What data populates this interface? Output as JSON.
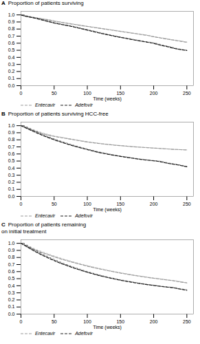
{
  "chart_data": [
    {
      "type": "step",
      "title": "A",
      "xlabel": "Time (weeks)",
      "ylabel": "Proportion of patients surviving",
      "x": [
        0,
        5,
        10,
        15,
        20,
        25,
        30,
        35,
        40,
        45,
        50,
        55,
        60,
        65,
        70,
        75,
        80,
        85,
        90,
        95,
        100,
        105,
        110,
        115,
        120,
        125,
        130,
        135,
        140,
        145,
        150,
        155,
        160,
        165,
        170,
        175,
        180,
        185,
        190,
        195,
        200,
        205,
        210,
        215,
        220,
        225,
        230,
        235,
        240,
        245,
        250
      ],
      "xlim": [
        0,
        260
      ],
      "xticks": [
        0,
        50,
        100,
        150,
        200,
        250
      ],
      "ylim": [
        0.0,
        1.05
      ],
      "yticks": [
        {
          "value": 0.0,
          "label": "0.0"
        },
        0.1,
        0.2,
        0.3,
        0.4,
        0.5,
        0.6,
        0.7,
        0.8,
        0.9,
        {
          "value": 1.0,
          "label": "1.0"
        }
      ],
      "grid": false,
      "legend": "lower left",
      "series": [
        {
          "name": "Entecavir",
          "color": "#999999",
          "line_style": "dashed",
          "values": [
            1.0,
            0.985,
            0.975,
            0.968,
            0.96,
            0.953,
            0.945,
            0.938,
            0.93,
            0.92,
            0.91,
            0.903,
            0.895,
            0.888,
            0.88,
            0.872,
            0.865,
            0.858,
            0.85,
            0.843,
            0.836,
            0.829,
            0.822,
            0.815,
            0.808,
            0.801,
            0.794,
            0.787,
            0.78,
            0.773,
            0.766,
            0.759,
            0.752,
            0.745,
            0.738,
            0.731,
            0.724,
            0.717,
            0.71,
            0.7,
            0.69,
            0.682,
            0.674,
            0.666,
            0.658,
            0.65,
            0.643,
            0.635,
            0.628,
            0.62,
            0.612
          ]
        },
        {
          "name": "Adefovir",
          "color": "#1a1a1a",
          "line_style": "dashed",
          "values": [
            1.0,
            0.985,
            0.975,
            0.965,
            0.955,
            0.944,
            0.932,
            0.92,
            0.908,
            0.896,
            0.884,
            0.875,
            0.866,
            0.857,
            0.848,
            0.839,
            0.828,
            0.817,
            0.806,
            0.795,
            0.784,
            0.773,
            0.762,
            0.751,
            0.74,
            0.73,
            0.72,
            0.71,
            0.7,
            0.691,
            0.682,
            0.673,
            0.664,
            0.655,
            0.646,
            0.638,
            0.63,
            0.622,
            0.614,
            0.606,
            0.598,
            0.585,
            0.572,
            0.562,
            0.552,
            0.54,
            0.528,
            0.518,
            0.51,
            0.503,
            0.496
          ]
        }
      ]
    },
    {
      "type": "step",
      "title": "B",
      "xlabel": "Time (weeks)",
      "ylabel": "Proportion of patients surviving HCC-free",
      "x": [
        0,
        5,
        10,
        15,
        20,
        25,
        30,
        35,
        40,
        45,
        50,
        55,
        60,
        65,
        70,
        75,
        80,
        85,
        90,
        95,
        100,
        105,
        110,
        115,
        120,
        125,
        130,
        135,
        140,
        145,
        150,
        155,
        160,
        165,
        170,
        175,
        180,
        185,
        190,
        195,
        200,
        205,
        210,
        215,
        220,
        225,
        230,
        235,
        240,
        245,
        250
      ],
      "xlim": [
        0,
        260
      ],
      "xticks": [
        0,
        50,
        100,
        150,
        200,
        250
      ],
      "ylim": [
        0.0,
        1.05
      ],
      "yticks": [
        {
          "value": 0.0,
          "label": "0.0"
        },
        0.1,
        0.2,
        0.3,
        0.4,
        0.5,
        0.6,
        0.7,
        0.8,
        0.9,
        {
          "value": 1.0,
          "label": "1.0"
        }
      ],
      "grid": false,
      "legend": "lower left",
      "series": [
        {
          "name": "Entecavir",
          "color": "#999999",
          "line_style": "dashed",
          "values": [
            1.0,
            0.98,
            0.962,
            0.944,
            0.926,
            0.91,
            0.895,
            0.882,
            0.87,
            0.858,
            0.848,
            0.84,
            0.832,
            0.824,
            0.816,
            0.808,
            0.8,
            0.792,
            0.784,
            0.776,
            0.769,
            0.763,
            0.757,
            0.751,
            0.745,
            0.74,
            0.735,
            0.73,
            0.725,
            0.721,
            0.717,
            0.713,
            0.709,
            0.705,
            0.701,
            0.698,
            0.695,
            0.692,
            0.689,
            0.686,
            0.683,
            0.68,
            0.677,
            0.674,
            0.671,
            0.668,
            0.665,
            0.663,
            0.661,
            0.659,
            0.657
          ]
        },
        {
          "name": "Adefovir",
          "color": "#1a1a1a",
          "line_style": "dashed",
          "values": [
            1.0,
            0.978,
            0.956,
            0.934,
            0.913,
            0.892,
            0.872,
            0.853,
            0.835,
            0.817,
            0.8,
            0.784,
            0.769,
            0.754,
            0.739,
            0.725,
            0.711,
            0.698,
            0.685,
            0.673,
            0.661,
            0.649,
            0.637,
            0.626,
            0.616,
            0.607,
            0.598,
            0.589,
            0.581,
            0.573,
            0.565,
            0.558,
            0.551,
            0.544,
            0.537,
            0.53,
            0.524,
            0.518,
            0.513,
            0.508,
            0.503,
            0.498,
            0.49,
            0.48,
            0.47,
            0.462,
            0.455,
            0.447,
            0.438,
            0.428,
            0.418
          ]
        }
      ]
    },
    {
      "type": "step",
      "title": "C",
      "xlabel": "Time (weeks)",
      "ylabel": "Proportion of patients remaining\non initial treatment",
      "x": [
        0,
        5,
        10,
        15,
        20,
        25,
        30,
        35,
        40,
        45,
        50,
        55,
        60,
        65,
        70,
        75,
        80,
        85,
        90,
        95,
        100,
        105,
        110,
        115,
        120,
        125,
        130,
        135,
        140,
        145,
        150,
        155,
        160,
        165,
        170,
        175,
        180,
        185,
        190,
        195,
        200,
        205,
        210,
        215,
        220,
        225,
        230,
        235,
        240,
        245,
        250
      ],
      "xlim": [
        0,
        260
      ],
      "xticks": [
        0,
        50,
        100,
        150,
        200,
        250
      ],
      "ylim": [
        0.0,
        1.05
      ],
      "yticks": [
        {
          "value": 0.0,
          "label": "0.0"
        },
        0.1,
        0.2,
        0.3,
        0.4,
        0.5,
        0.6,
        0.7,
        0.8,
        0.9,
        {
          "value": 1.0,
          "label": "1.0"
        }
      ],
      "grid": false,
      "legend": "lower left",
      "series": [
        {
          "name": "Entecavir",
          "color": "#999999",
          "line_style": "dashed",
          "values": [
            1.0,
            0.975,
            0.952,
            0.93,
            0.91,
            0.892,
            0.875,
            0.858,
            0.841,
            0.825,
            0.809,
            0.794,
            0.779,
            0.765,
            0.752,
            0.739,
            0.726,
            0.713,
            0.701,
            0.689,
            0.677,
            0.666,
            0.655,
            0.645,
            0.635,
            0.625,
            0.615,
            0.606,
            0.597,
            0.588,
            0.579,
            0.571,
            0.563,
            0.555,
            0.547,
            0.54,
            0.533,
            0.526,
            0.519,
            0.512,
            0.506,
            0.5,
            0.494,
            0.488,
            0.482,
            0.476,
            0.47,
            0.462,
            0.454,
            0.447,
            0.44
          ]
        },
        {
          "name": "Adefovir",
          "color": "#1a1a1a",
          "line_style": "dashed",
          "values": [
            1.0,
            0.972,
            0.944,
            0.917,
            0.891,
            0.866,
            0.842,
            0.819,
            0.797,
            0.776,
            0.756,
            0.736,
            0.717,
            0.699,
            0.682,
            0.665,
            0.649,
            0.634,
            0.619,
            0.604,
            0.59,
            0.577,
            0.564,
            0.551,
            0.539,
            0.528,
            0.517,
            0.507,
            0.497,
            0.487,
            0.478,
            0.469,
            0.461,
            0.453,
            0.445,
            0.437,
            0.43,
            0.423,
            0.416,
            0.41,
            0.404,
            0.398,
            0.392,
            0.386,
            0.381,
            0.376,
            0.371,
            0.361,
            0.352,
            0.344,
            0.336
          ]
        }
      ]
    }
  ]
}
